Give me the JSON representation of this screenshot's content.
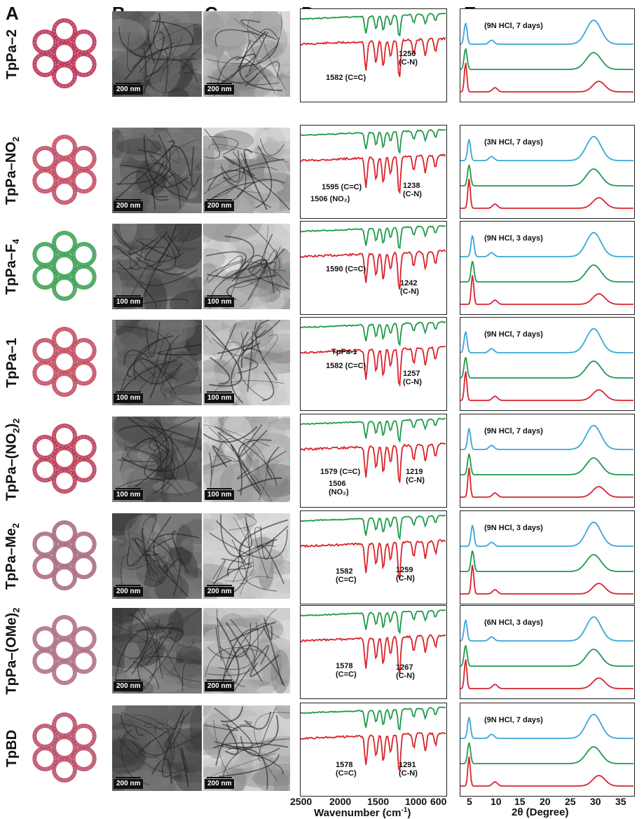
{
  "columns": [
    "A",
    "B",
    "C",
    "D",
    "E"
  ],
  "rows": [
    {
      "label": "TpPa–2",
      "label_sub": "",
      "b_scale": "200 nm",
      "c_scale": "200 nm",
      "d_ann": [
        {
          "text": "1582 (C=C)",
          "x": 36,
          "y": 92
        },
        {
          "text": "1250\n(C-N)",
          "x": 140,
          "y": 58
        }
      ],
      "e_ann": "(9N HCl, 7 days)",
      "linker": "#c8304a"
    },
    {
      "label": "TpPa–NO",
      "label_sub": "2",
      "b_scale": "200 nm",
      "c_scale": "200 nm",
      "d_ann": [
        {
          "text": "1595 (C=C)",
          "x": 30,
          "y": 82
        },
        {
          "text": "1506 (NO₂)",
          "x": 14,
          "y": 99
        },
        {
          "text": "1238\n(C-N)",
          "x": 146,
          "y": 80
        }
      ],
      "e_ann": "(3N HCl, 7 days)",
      "linker": "#d04a5a"
    },
    {
      "label": "TpPa–F",
      "label_sub": "4",
      "b_scale": "100 nm",
      "c_scale": "100 nm",
      "d_ann": [
        {
          "text": "1590 (C=C)",
          "x": 36,
          "y": 62
        },
        {
          "text": "1242\n(C-N)",
          "x": 142,
          "y": 82
        }
      ],
      "e_ann": "(9N HCl, 3 days)",
      "linker": "#3aa84a"
    },
    {
      "label": "TpPa–1",
      "label_sub": "",
      "b_scale": "100 nm",
      "c_scale": "100 nm",
      "d_ann": [
        {
          "text": "TpPa-1",
          "x": 44,
          "y": 43
        },
        {
          "text": "1582 (C=C)",
          "x": 36,
          "y": 63
        },
        {
          "text": "1257\n(C-N)",
          "x": 146,
          "y": 74
        }
      ],
      "e_ann": "(9N HCl, 7 days)",
      "linker": "#d24a55"
    },
    {
      "label": "TpPa–(NO",
      "label_sub": "2",
      "label_tail": ")",
      "label_sub2": "2",
      "b_scale": "100 nm",
      "c_scale": "100 nm",
      "d_ann": [
        {
          "text": "1579 (C=C)",
          "x": 28,
          "y": 76
        },
        {
          "text": "1506\n(NO₂)",
          "x": 40,
          "y": 93
        },
        {
          "text": "1219\n(C-N)",
          "x": 150,
          "y": 76
        }
      ],
      "e_ann": "(9N HCl, 7 days)",
      "linker": "#c83a4e"
    },
    {
      "label": "TpPa–Me",
      "label_sub": "2",
      "b_scale": "200 nm",
      "c_scale": "200 nm",
      "d_ann": [
        {
          "text": "1582\n(C=C)",
          "x": 50,
          "y": 80
        },
        {
          "text": "1259\n(C-N)",
          "x": 136,
          "y": 78
        }
      ],
      "e_ann": "(9N HCl, 3 days)",
      "linker": "#b46a7a"
    },
    {
      "label": "TpPa–(OMe)",
      "label_sub": "2",
      "b_scale": "200 nm",
      "c_scale": "200 nm",
      "d_ann": [
        {
          "text": "1578\n(C=C)",
          "x": 50,
          "y": 80
        },
        {
          "text": "1267\n(C-N)",
          "x": 136,
          "y": 82
        }
      ],
      "e_ann": "(6N HCl, 3 days)",
      "linker": "#b8707e"
    },
    {
      "label": "TpBD",
      "label_sub": "",
      "b_scale": "200 nm",
      "c_scale": "200 nm",
      "d_ann": [
        {
          "text": "1578\n(C=C)",
          "x": 50,
          "y": 82
        },
        {
          "text": "1291\n(C-N)",
          "x": 140,
          "y": 82
        }
      ],
      "e_ann": "(9N HCl, 7 days)",
      "linker": "#c84a5e"
    }
  ],
  "axis_d": {
    "ticks": [
      "2500",
      "2000",
      "1500",
      "1000",
      "600"
    ],
    "title": "Wavenumber (cm",
    "title_sup": "-1",
    "title_tail": ")"
  },
  "axis_e": {
    "ticks": [
      "5",
      "10",
      "15",
      "20",
      "25",
      "30",
      "35"
    ],
    "title": "2θ (Degree)"
  },
  "colors": {
    "green": "#1f9a4a",
    "red": "#d8242c",
    "blue": "#3aa6d8"
  }
}
